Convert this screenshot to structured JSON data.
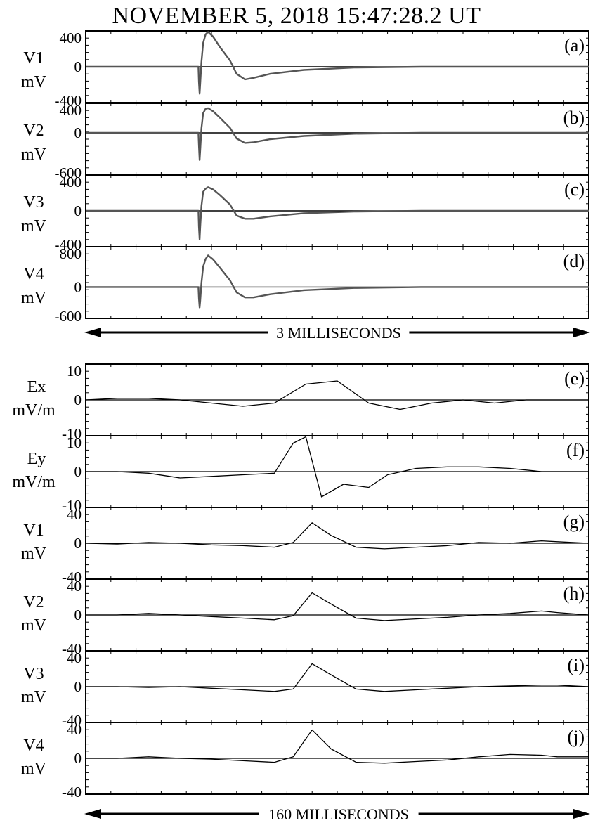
{
  "header": {
    "title": "NOVEMBER 5, 2018  15:47:28.2 UT"
  },
  "chart_data": [
    {
      "type": "line",
      "group": "top",
      "time_span_label": "3 MILLISECONDS",
      "panels": [
        {
          "id": "a",
          "tag": "(a)",
          "name": "V1",
          "unit": "mV",
          "yticks": [
            "400",
            "0",
            "-400"
          ],
          "ylim": [
            -400,
            400
          ],
          "x": [
            0,
            0.672,
            0.675,
            0.679,
            0.683,
            0.69,
            0.7,
            0.715,
            0.73,
            0.76,
            0.8,
            0.86,
            0.9,
            0.95,
            1.0,
            1.1,
            1.3,
            1.6,
            2.0,
            2.6,
            3.0
          ],
          "y": [
            0,
            0,
            -190,
            -340,
            -210,
            60,
            300,
            410,
            440,
            380,
            250,
            80,
            -90,
            -160,
            -140,
            -90,
            -40,
            -10,
            0,
            0,
            0
          ]
        },
        {
          "id": "b",
          "tag": "(b)",
          "name": "V2",
          "unit": "mV",
          "yticks": [
            "400",
            "0",
            "-600"
          ],
          "ylim": [
            -600,
            400
          ],
          "x": [
            0,
            0.672,
            0.675,
            0.679,
            0.683,
            0.69,
            0.7,
            0.715,
            0.73,
            0.76,
            0.8,
            0.86,
            0.9,
            0.95,
            1.0,
            1.1,
            1.3,
            1.6,
            2.0,
            2.6,
            3.0
          ],
          "y": [
            0,
            0,
            -200,
            -430,
            -270,
            70,
            310,
            380,
            390,
            340,
            240,
            80,
            -90,
            -160,
            -150,
            -100,
            -50,
            -15,
            0,
            0,
            0
          ]
        },
        {
          "id": "c",
          "tag": "(c)",
          "name": "V3",
          "unit": "mV",
          "yticks": [
            "400",
            "0",
            "-400"
          ],
          "ylim": [
            -400,
            400
          ],
          "x": [
            0,
            0.672,
            0.675,
            0.679,
            0.683,
            0.69,
            0.7,
            0.715,
            0.73,
            0.76,
            0.8,
            0.86,
            0.9,
            0.95,
            1.0,
            1.1,
            1.3,
            1.6,
            2.0,
            2.6,
            3.0
          ],
          "y": [
            0,
            0,
            -200,
            -360,
            -200,
            60,
            240,
            280,
            300,
            270,
            200,
            80,
            -60,
            -100,
            -100,
            -70,
            -30,
            -10,
            0,
            0,
            0
          ]
        },
        {
          "id": "d",
          "tag": "(d)",
          "name": "V4",
          "unit": "mV",
          "yticks": [
            "800",
            "0",
            "-600"
          ],
          "ylim": [
            -600,
            800
          ],
          "x": [
            0,
            0.672,
            0.675,
            0.679,
            0.683,
            0.69,
            0.7,
            0.715,
            0.73,
            0.76,
            0.8,
            0.86,
            0.9,
            0.95,
            1.0,
            1.1,
            1.3,
            1.6,
            2.0,
            2.6,
            3.0
          ],
          "y": [
            0,
            0,
            -250,
            -450,
            -300,
            90,
            450,
            620,
            700,
            610,
            430,
            150,
            -120,
            -230,
            -230,
            -160,
            -70,
            -20,
            0,
            0,
            0
          ]
        }
      ]
    },
    {
      "type": "line",
      "group": "bottom",
      "time_span_label": "160 MILLISECONDS",
      "panels": [
        {
          "id": "e",
          "tag": "(e)",
          "name": "Ex",
          "unit": "mV/m",
          "yticks": [
            "10",
            "0",
            "-10"
          ],
          "ylim": [
            -10,
            10
          ],
          "x": [
            0,
            10,
            20,
            30,
            40,
            50,
            60,
            70,
            80,
            90,
            100,
            110,
            120,
            130,
            140,
            150,
            160
          ],
          "y": [
            0,
            0.5,
            0.5,
            0,
            -1,
            -2,
            -1,
            5,
            6,
            -1,
            -3,
            -1,
            0,
            -1,
            0,
            0,
            0
          ]
        },
        {
          "id": "f",
          "tag": "(f)",
          "name": "Ey",
          "unit": "mV/m",
          "yticks": [
            "10",
            "0",
            "-10"
          ],
          "ylim": [
            -10,
            10
          ],
          "x": [
            0,
            10,
            20,
            30,
            40,
            50,
            60,
            66,
            70,
            75,
            82,
            90,
            96,
            105,
            115,
            125,
            135,
            145,
            160
          ],
          "y": [
            0,
            0,
            -0.5,
            -2,
            -1.5,
            -1,
            -0.5,
            9,
            11,
            -8,
            -4,
            -5,
            -1,
            1,
            1.5,
            1.5,
            1,
            0,
            0
          ]
        },
        {
          "id": "g",
          "tag": "(g)",
          "name": "V1",
          "unit": "mV",
          "yticks": [
            "40",
            "0",
            "-40"
          ],
          "ylim": [
            -40,
            40
          ],
          "x": [
            0,
            10,
            20,
            30,
            40,
            50,
            60,
            66,
            72,
            78,
            86,
            95,
            105,
            115,
            125,
            135,
            145,
            150,
            160
          ],
          "y": [
            0,
            -1,
            1,
            0,
            -2,
            -3,
            -5,
            1,
            26,
            10,
            -5,
            -7,
            -5,
            -3,
            1,
            0,
            3,
            2,
            0
          ]
        },
        {
          "id": "h",
          "tag": "(h)",
          "name": "V2",
          "unit": "mV",
          "yticks": [
            "40",
            "0",
            "-40"
          ],
          "ylim": [
            -40,
            40
          ],
          "x": [
            0,
            10,
            20,
            30,
            40,
            50,
            60,
            66,
            72,
            78,
            86,
            95,
            105,
            115,
            125,
            135,
            145,
            150,
            160
          ],
          "y": [
            0,
            0,
            2,
            0,
            -2,
            -4,
            -6,
            -1,
            28,
            14,
            -4,
            -7,
            -5,
            -3,
            0,
            2,
            5,
            3,
            0
          ]
        },
        {
          "id": "i",
          "tag": "(i)",
          "name": "V3",
          "unit": "mV",
          "yticks": [
            "40",
            "0",
            "-40"
          ],
          "ylim": [
            -40,
            40
          ],
          "x": [
            0,
            10,
            20,
            30,
            40,
            50,
            60,
            66,
            72,
            78,
            86,
            95,
            105,
            115,
            125,
            135,
            145,
            150,
            160
          ],
          "y": [
            0,
            0,
            -1,
            0,
            -2,
            -4,
            -6,
            -3,
            29,
            15,
            -3,
            -6,
            -4,
            -2,
            0,
            1,
            2,
            2,
            0
          ]
        },
        {
          "id": "j",
          "tag": "(j)",
          "name": "V4",
          "unit": "mV",
          "yticks": [
            "40",
            "0",
            "-40"
          ],
          "ylim": [
            -40,
            40
          ],
          "x": [
            0,
            10,
            20,
            30,
            40,
            50,
            60,
            66,
            72,
            78,
            86,
            95,
            105,
            115,
            125,
            135,
            145,
            150,
            160
          ],
          "y": [
            0,
            0,
            2,
            0,
            -1,
            -3,
            -5,
            2,
            36,
            12,
            -5,
            -6,
            -4,
            -2,
            2,
            5,
            4,
            2,
            2
          ]
        }
      ]
    }
  ]
}
